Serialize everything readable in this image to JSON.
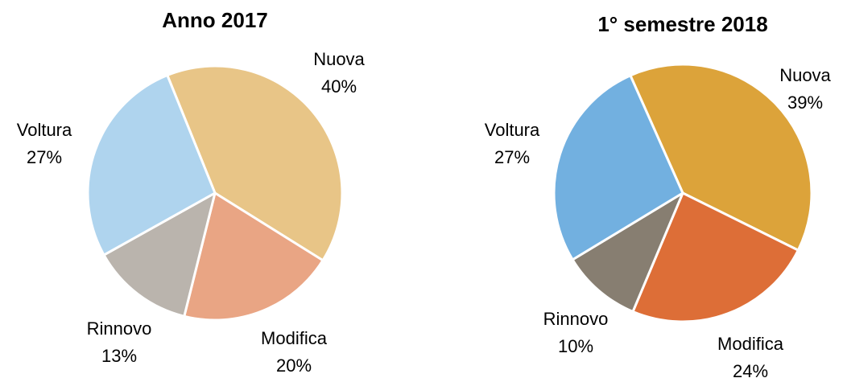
{
  "chart_data": [
    {
      "type": "pie",
      "title": "Anno 2017",
      "categories": [
        "Nuova",
        "Modifica",
        "Rinnovo",
        "Voltura"
      ],
      "values": [
        40,
        20,
        13,
        27
      ],
      "value_labels": [
        "40%",
        "20%",
        "13%",
        "27%"
      ],
      "colors": [
        "#e8c587",
        "#e9a584",
        "#bab4ad",
        "#afd4ee"
      ]
    },
    {
      "type": "pie",
      "title": "1° semestre 2018",
      "categories": [
        "Nuova",
        "Modifica",
        "Rinnovo",
        "Voltura"
      ],
      "values": [
        39,
        24,
        10,
        27
      ],
      "value_labels": [
        "39%",
        "24%",
        "10%",
        "27%"
      ],
      "colors": [
        "#dca33a",
        "#dd6e37",
        "#877e71",
        "#72b0e0"
      ]
    }
  ]
}
